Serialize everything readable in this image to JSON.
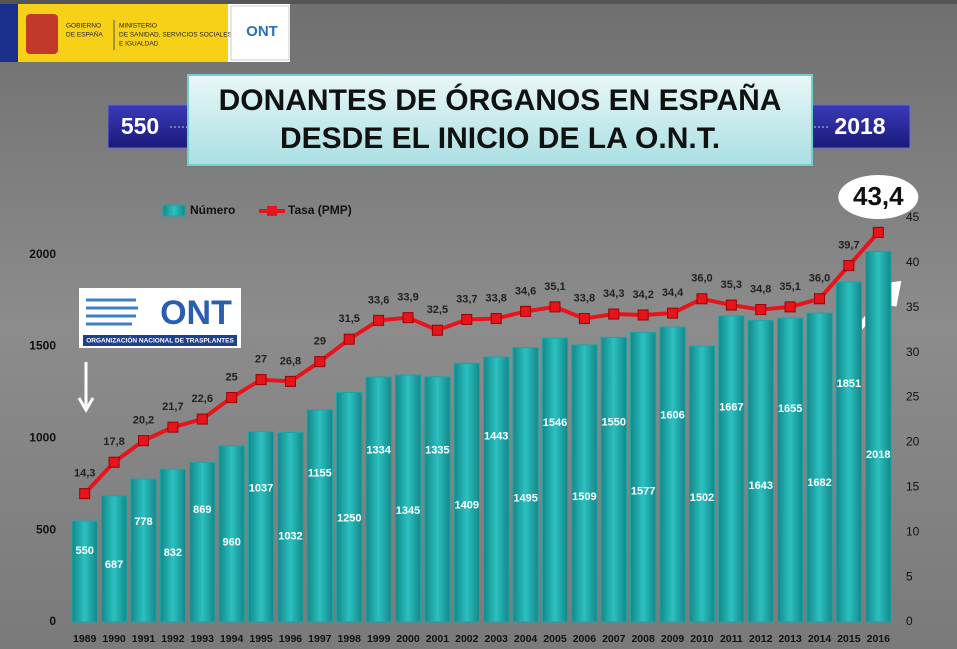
{
  "header": {
    "government": [
      "GOBIERNO",
      "DE ESPAÑA"
    ],
    "ministry": [
      "MINISTERIO",
      "DE SANIDAD, SERVICIOS SOCIALES",
      "E IGUALDAD"
    ],
    "header_logo": "ONT",
    "title_lines": [
      "DONANTES DE ÓRGANOS EN ESPAÑA",
      "DESDE EL INICIO DE LA O.N.T."
    ],
    "banner_start": "550",
    "banner_end": "2018",
    "logo": "ONT",
    "logo_caption": "ORGANIZACIÓN NACIONAL DE TRASPLANTES"
  },
  "chart_data": {
    "type": "bar",
    "categories": [
      "1989",
      "1990",
      "1991",
      "1992",
      "1993",
      "1994",
      "1995",
      "1996",
      "1997",
      "1998",
      "1999",
      "2000",
      "2001",
      "2002",
      "2003",
      "2004",
      "2005",
      "2006",
      "2007",
      "2008",
      "2009",
      "2010",
      "2011",
      "2012",
      "2013",
      "2014",
      "2015",
      "2016"
    ],
    "series": [
      {
        "name": "Número",
        "type": "bar",
        "color": "#1ba6a6",
        "values": [
          550,
          687,
          778,
          832,
          869,
          960,
          1037,
          1032,
          1155,
          1250,
          1334,
          1345,
          1335,
          1409,
          1443,
          1495,
          1546,
          1509,
          1550,
          1577,
          1606,
          1502,
          1667,
          1643,
          1655,
          1682,
          1851,
          2018
        ]
      },
      {
        "name": "Tasa (PMP)",
        "type": "line",
        "axis": "y2",
        "color": "#e8141c",
        "values": [
          14.3,
          17.8,
          20.2,
          21.7,
          22.6,
          25,
          27,
          26.8,
          29,
          31.5,
          33.6,
          33.9,
          32.5,
          33.7,
          33.8,
          34.6,
          35.1,
          33.8,
          34.3,
          34.2,
          34.4,
          36.0,
          35.3,
          34.8,
          35.1,
          36.0,
          39.7,
          43.4
        ],
        "value_labels": [
          "14,3",
          "17,8",
          "20,2",
          "21,7",
          "22,6",
          "25",
          "27",
          "26,8",
          "29",
          "31,5",
          "33,6",
          "33,9",
          "32,5",
          "33,7",
          "33,8",
          "34,6",
          "35,1",
          "33,8",
          "34,3",
          "34,2",
          "34,4",
          "36,0",
          "35,3",
          "34,8",
          "35,1",
          "36,0",
          "39,7",
          "43,4"
        ]
      }
    ],
    "ylim": [
      0,
      2200
    ],
    "yticks": [
      0,
      500,
      1000,
      1500,
      2000
    ],
    "y2lim": [
      0,
      45
    ],
    "y2ticks": [
      0,
      5,
      10,
      15,
      20,
      25,
      30,
      35,
      40,
      45
    ],
    "grid": false,
    "legend": "top-left"
  }
}
